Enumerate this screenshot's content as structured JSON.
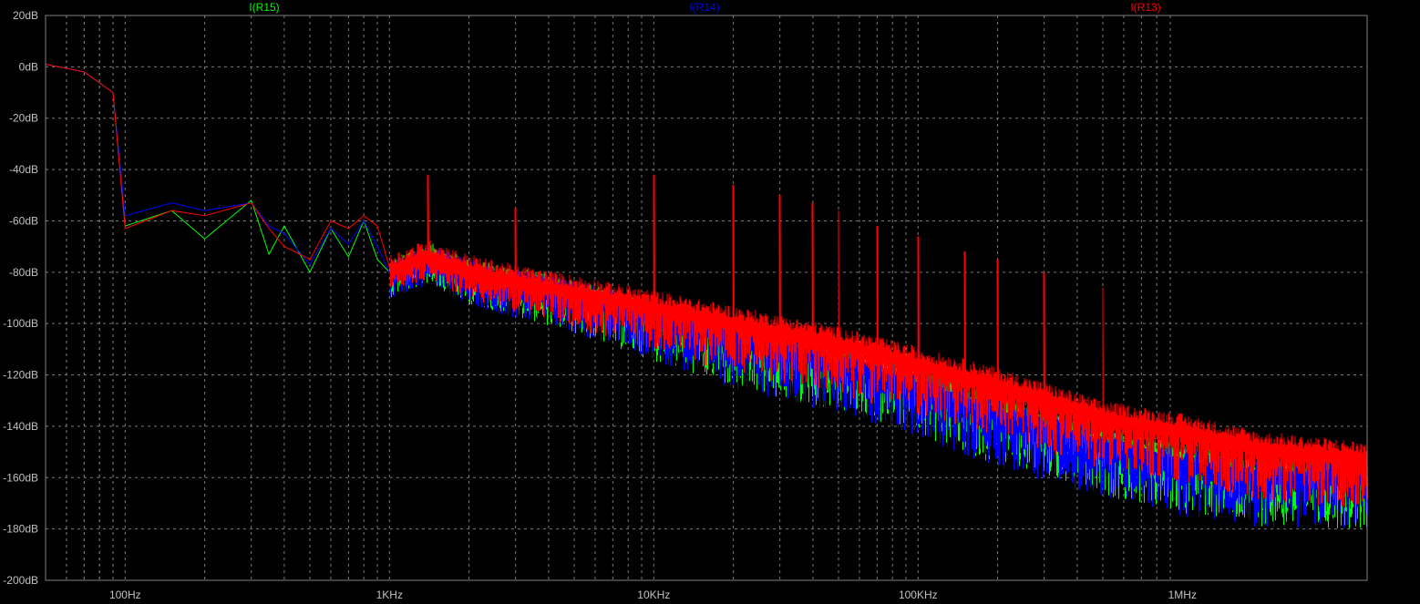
{
  "chart_data": {
    "type": "line",
    "title": "",
    "xlabel": "",
    "ylabel": "",
    "x_scale": "log",
    "xlim": [
      50,
      5000000
    ],
    "ylim": [
      -200,
      20
    ],
    "grid": true,
    "legend_placement": "top",
    "background": "#000000",
    "x_tick_labels": [
      {
        "value": 100,
        "label": "100Hz"
      },
      {
        "value": 1000,
        "label": "1KHz"
      },
      {
        "value": 10000,
        "label": "10KHz"
      },
      {
        "value": 100000,
        "label": "100KHz"
      },
      {
        "value": 1000000,
        "label": "1MHz"
      }
    ],
    "y_tick_labels": [
      {
        "value": 20,
        "label": "20dB"
      },
      {
        "value": 0,
        "label": "0dB"
      },
      {
        "value": -20,
        "label": "-20dB"
      },
      {
        "value": -40,
        "label": "-40dB"
      },
      {
        "value": -60,
        "label": "-60dB"
      },
      {
        "value": -80,
        "label": "-80dB"
      },
      {
        "value": -100,
        "label": "-100dB"
      },
      {
        "value": -120,
        "label": "-120dB"
      },
      {
        "value": -140,
        "label": "-140dB"
      },
      {
        "value": -160,
        "label": "-160dB"
      },
      {
        "value": -180,
        "label": "-180dB"
      },
      {
        "value": -200,
        "label": "-200dB"
      }
    ],
    "series": [
      {
        "name": "I(R15)",
        "color": "#00ff00",
        "points": [
          [
            50,
            1
          ],
          [
            70,
            -2
          ],
          [
            90,
            -10
          ],
          [
            100,
            -62
          ],
          [
            150,
            -56
          ],
          [
            200,
            -67
          ],
          [
            300,
            -52
          ],
          [
            350,
            -73
          ],
          [
            400,
            -62
          ],
          [
            500,
            -80
          ],
          [
            600,
            -63
          ],
          [
            700,
            -74
          ],
          [
            800,
            -60
          ],
          [
            900,
            -75
          ],
          [
            1000,
            -80
          ],
          [
            1400,
            -73
          ],
          [
            2000,
            -80
          ],
          [
            3000,
            -83
          ],
          [
            5000,
            -88
          ],
          [
            10000,
            -96
          ],
          [
            20000,
            -104
          ],
          [
            50000,
            -112
          ],
          [
            100000,
            -122
          ],
          [
            200000,
            -133
          ],
          [
            500000,
            -145
          ],
          [
            1000000,
            -152
          ],
          [
            2000000,
            -157
          ],
          [
            5000000,
            -158
          ]
        ]
      },
      {
        "name": "I(R14)",
        "color": "#0000ff",
        "points": [
          [
            50,
            1
          ],
          [
            70,
            -2
          ],
          [
            90,
            -10
          ],
          [
            100,
            -58
          ],
          [
            150,
            -53
          ],
          [
            200,
            -56
          ],
          [
            300,
            -53
          ],
          [
            350,
            -62
          ],
          [
            400,
            -65
          ],
          [
            500,
            -77
          ],
          [
            600,
            -63
          ],
          [
            700,
            -69
          ],
          [
            800,
            -60
          ],
          [
            900,
            -70
          ],
          [
            1000,
            -80
          ],
          [
            1400,
            -74
          ],
          [
            2000,
            -80
          ],
          [
            3000,
            -84
          ],
          [
            5000,
            -88
          ],
          [
            10000,
            -96
          ],
          [
            20000,
            -104
          ],
          [
            50000,
            -113
          ],
          [
            100000,
            -123
          ],
          [
            200000,
            -134
          ],
          [
            500000,
            -146
          ],
          [
            1000000,
            -153
          ],
          [
            2000000,
            -158
          ],
          [
            5000000,
            -158
          ]
        ]
      },
      {
        "name": "I(R13)",
        "color": "#ff0000",
        "points": [
          [
            50,
            1
          ],
          [
            70,
            -2
          ],
          [
            90,
            -10
          ],
          [
            100,
            -63
          ],
          [
            150,
            -56
          ],
          [
            200,
            -58
          ],
          [
            300,
            -53
          ],
          [
            350,
            -63
          ],
          [
            400,
            -70
          ],
          [
            500,
            -75
          ],
          [
            600,
            -60
          ],
          [
            700,
            -63
          ],
          [
            800,
            -58
          ],
          [
            900,
            -62
          ],
          [
            1000,
            -78
          ],
          [
            1400,
            -72
          ],
          [
            2000,
            -78
          ],
          [
            3000,
            -82
          ],
          [
            5000,
            -86
          ],
          [
            10000,
            -92
          ],
          [
            20000,
            -98
          ],
          [
            50000,
            -106
          ],
          [
            100000,
            -114
          ],
          [
            200000,
            -122
          ],
          [
            500000,
            -135
          ],
          [
            1000000,
            -140
          ],
          [
            2000000,
            -147
          ],
          [
            5000000,
            -151
          ]
        ]
      }
    ],
    "peaks": [
      {
        "series": "I(R13)",
        "x": 1400,
        "y": -42
      },
      {
        "series": "I(R13)",
        "x": 3000,
        "y": -55
      },
      {
        "series": "I(R13)",
        "x": 10000,
        "y": -42
      },
      {
        "series": "I(R13)",
        "x": 20000,
        "y": -46
      },
      {
        "series": "I(R13)",
        "x": 30000,
        "y": -50
      },
      {
        "series": "I(R13)",
        "x": 40000,
        "y": -53
      },
      {
        "series": "I(R13)",
        "x": 50000,
        "y": -56
      },
      {
        "series": "I(R13)",
        "x": 70000,
        "y": -62
      },
      {
        "series": "I(R13)",
        "x": 100000,
        "y": -66
      },
      {
        "series": "I(R13)",
        "x": 150000,
        "y": -72
      },
      {
        "series": "I(R13)",
        "x": 200000,
        "y": -75
      },
      {
        "series": "I(R13)",
        "x": 300000,
        "y": -80
      },
      {
        "series": "I(R13)",
        "x": 500000,
        "y": -86
      }
    ]
  }
}
